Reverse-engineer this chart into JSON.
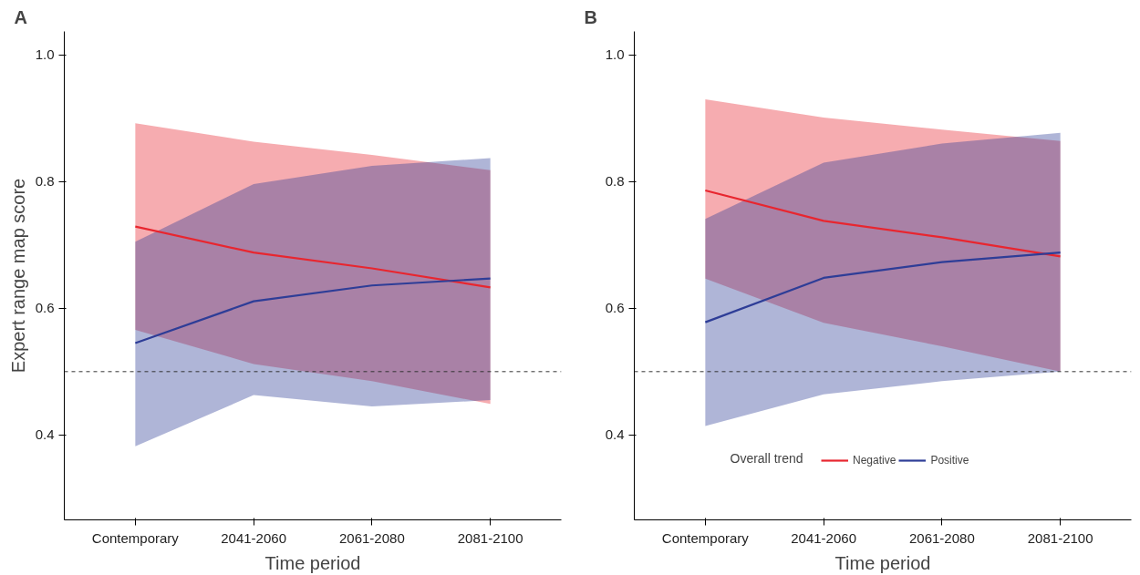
{
  "chart_data": [
    {
      "type": "line",
      "title": "A",
      "xlabel": "Time period",
      "ylabel": "Expert range map score",
      "categories": [
        "Contemporary",
        "2041-2060",
        "2061-2080",
        "2081-2100"
      ],
      "series": [
        {
          "color": "#e8262f",
          "values": [
            0.729,
            0.688,
            0.663,
            0.633
          ],
          "lower": [
            0.566,
            0.512,
            0.485,
            0.449
          ],
          "upper": [
            0.892,
            0.863,
            0.842,
            0.818
          ]
        },
        {
          "color": "#2e3d97",
          "values": [
            0.545,
            0.611,
            0.636,
            0.647
          ],
          "lower": [
            0.382,
            0.463,
            0.445,
            0.455
          ],
          "upper": [
            0.705,
            0.796,
            0.825,
            0.837
          ]
        }
      ],
      "ylim": [
        0.266,
        1.037
      ],
      "yticks": [
        {
          "value": 0.4,
          "label": "0.4"
        },
        {
          "value": 0.6,
          "label": "0.6"
        },
        {
          "value": 0.8,
          "label": "0.8"
        },
        {
          "value": 1.0,
          "label": "1.0"
        }
      ],
      "grid": false,
      "legend": false,
      "ref_lines": [
        {
          "axis": "y",
          "value": 0.5,
          "line_style": "dashed",
          "color": "#333333"
        }
      ]
    },
    {
      "type": "line",
      "title": "B",
      "xlabel": "Time period",
      "legend_title": "Overall trend",
      "categories": [
        "Contemporary",
        "2041-2060",
        "2061-2080",
        "2081-2100"
      ],
      "series": [
        {
          "name": "Negative",
          "color": "#e8262f",
          "values": [
            0.786,
            0.738,
            0.712,
            0.682
          ],
          "lower": [
            0.647,
            0.577,
            0.54,
            0.5
          ],
          "upper": [
            0.93,
            0.901,
            0.882,
            0.864
          ]
        },
        {
          "name": "Positive",
          "color": "#2e3d97",
          "values": [
            0.578,
            0.648,
            0.673,
            0.688
          ],
          "lower": [
            0.414,
            0.464,
            0.485,
            0.5
          ],
          "upper": [
            0.741,
            0.83,
            0.86,
            0.877
          ]
        }
      ],
      "ylim": [
        0.266,
        1.037
      ],
      "yticks": [
        {
          "value": 0.4,
          "label": "0.4"
        },
        {
          "value": 0.6,
          "label": "0.6"
        },
        {
          "value": 0.8,
          "label": "0.8"
        },
        {
          "value": 1.0,
          "label": "1.0"
        }
      ],
      "grid": false,
      "legend": "bottom",
      "ref_lines": [
        {
          "axis": "y",
          "value": 0.5,
          "line_style": "dashed",
          "color": "#333333"
        }
      ]
    }
  ]
}
